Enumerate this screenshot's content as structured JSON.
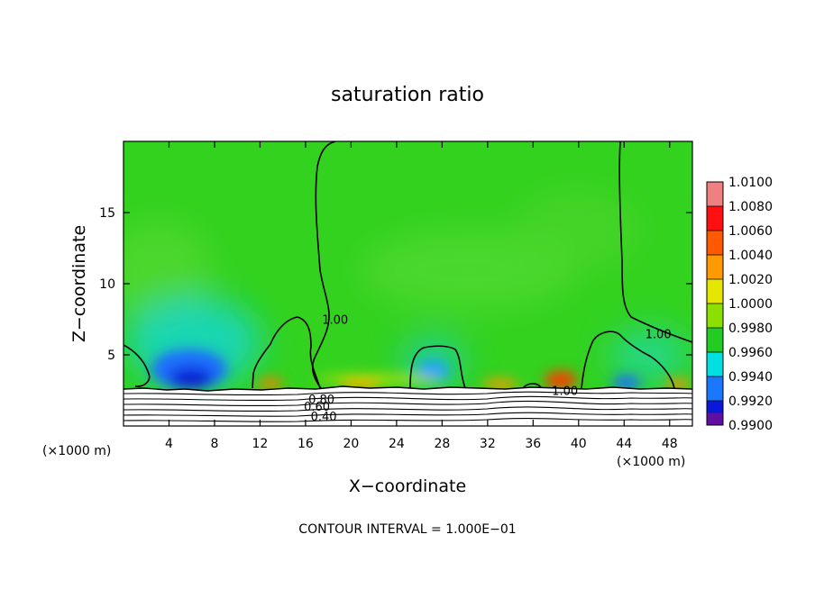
{
  "chart_data": {
    "type": "heatmap",
    "title": "saturation ratio",
    "xlabel": "X−coordinate",
    "ylabel": "Z−coordinate",
    "x_unit_left": "(×1000 m)",
    "x_unit_right": "(×1000 m)",
    "xlim": [
      0,
      50
    ],
    "ylim": [
      0,
      20
    ],
    "x_ticks": [
      4,
      8,
      12,
      16,
      20,
      24,
      28,
      32,
      36,
      40,
      44,
      48
    ],
    "y_ticks": [
      5,
      10,
      15
    ],
    "footer": "CONTOUR INTERVAL = 1.000E−01",
    "colorbar": {
      "levels": [
        "1.0100",
        "1.0080",
        "1.0060",
        "1.0040",
        "1.0020",
        "1.0000",
        "0.9980",
        "0.9960",
        "0.9940",
        "0.9920",
        "0.9900"
      ],
      "colors": [
        "#f08080",
        "#ff1010",
        "#ff5a00",
        "#ff9a00",
        "#e6e600",
        "#8ce000",
        "#22cc22",
        "#00e0e0",
        "#1a78ff",
        "#0a18d8",
        "#6010a0"
      ]
    },
    "contour_labels": [
      {
        "text": "1.00",
        "x": 18.6,
        "z": 7.5
      },
      {
        "text": "1.00",
        "x": 47.0,
        "z": 6.5
      },
      {
        "text": "1.00",
        "x": 38.8,
        "z": 2.5
      },
      {
        "text": "0.80",
        "x": 17.4,
        "z": 1.9
      },
      {
        "text": "0.60",
        "x": 17.0,
        "z": 1.4
      },
      {
        "text": "0.40",
        "x": 17.6,
        "z": 0.7
      }
    ]
  }
}
